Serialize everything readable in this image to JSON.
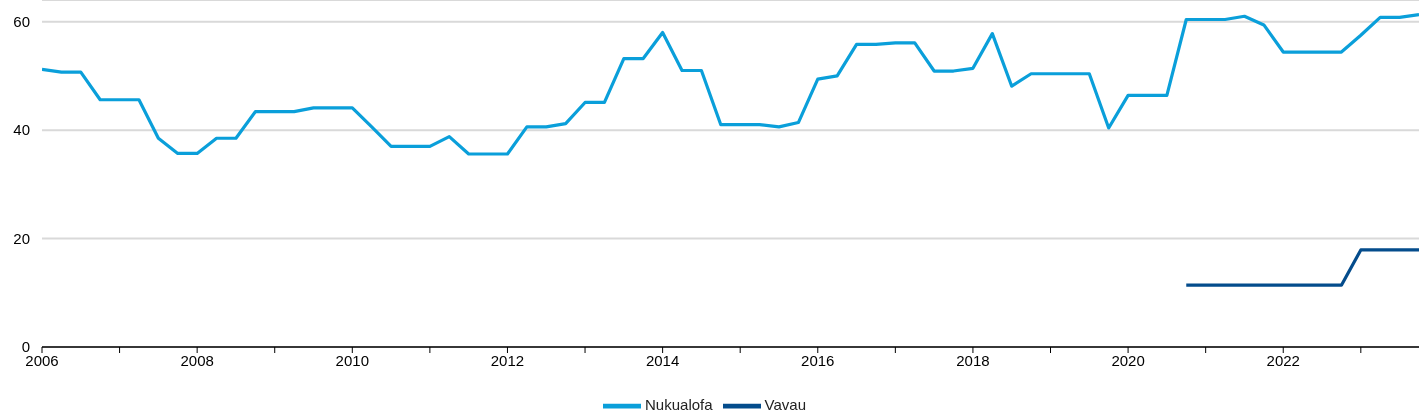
{
  "chart_data": {
    "type": "line",
    "x": [
      2006,
      2006.25,
      2006.5,
      2006.75,
      2007,
      2007.25,
      2007.5,
      2007.75,
      2008,
      2008.25,
      2008.5,
      2008.75,
      2009,
      2009.25,
      2009.5,
      2009.75,
      2010,
      2010.25,
      2010.5,
      2010.75,
      2011,
      2011.25,
      2011.5,
      2011.75,
      2012,
      2012.25,
      2012.5,
      2012.75,
      2013,
      2013.25,
      2013.5,
      2013.75,
      2014,
      2014.25,
      2014.5,
      2014.75,
      2015,
      2015.25,
      2015.5,
      2015.75,
      2016,
      2016.25,
      2016.5,
      2016.75,
      2017,
      2017.25,
      2017.5,
      2017.75,
      2018,
      2018.25,
      2018.5,
      2018.75,
      2019,
      2019.25,
      2019.5,
      2019.75,
      2020,
      2020.25,
      2020.5,
      2020.75,
      2021,
      2021.25,
      2021.5,
      2021.75,
      2022,
      2022.25,
      2022.5,
      2022.75,
      2023,
      2023.25,
      2023.5,
      2023.75
    ],
    "series": [
      {
        "name": "Nukualofa",
        "color": "#0a9fda",
        "values": [
          51.2,
          50.7,
          50.7,
          45.6,
          45.6,
          45.6,
          38.5,
          35.7,
          35.7,
          38.5,
          38.5,
          43.4,
          43.4,
          43.4,
          44.1,
          44.1,
          44.1,
          40.6,
          37.0,
          37.0,
          37.0,
          38.8,
          35.6,
          35.6,
          35.6,
          40.6,
          40.6,
          41.2,
          45.1,
          45.1,
          53.2,
          53.2,
          58.0,
          51.0,
          51.0,
          41.0,
          41.0,
          41.0,
          40.6,
          41.4,
          49.4,
          50.0,
          55.8,
          55.8,
          56.1,
          56.1,
          50.9,
          50.9,
          51.4,
          57.8,
          48.1,
          50.4,
          50.4,
          50.4,
          50.4,
          40.4,
          46.4,
          46.4,
          46.4,
          60.4,
          60.4,
          60.4,
          61.0,
          59.4,
          54.4,
          54.4,
          54.4,
          54.4,
          57.5,
          60.8,
          60.8,
          61.3
        ]
      },
      {
        "name": "Vavau",
        "color": "#044c8c",
        "values": [
          null,
          null,
          null,
          null,
          null,
          null,
          null,
          null,
          null,
          null,
          null,
          null,
          null,
          null,
          null,
          null,
          null,
          null,
          null,
          null,
          null,
          null,
          null,
          null,
          null,
          null,
          null,
          null,
          null,
          null,
          null,
          null,
          null,
          null,
          null,
          null,
          null,
          null,
          null,
          null,
          null,
          null,
          null,
          null,
          null,
          null,
          null,
          null,
          null,
          null,
          null,
          null,
          null,
          null,
          null,
          null,
          null,
          null,
          null,
          11.4,
          11.4,
          11.4,
          11.4,
          11.4,
          11.4,
          11.4,
          11.4,
          11.4,
          17.9,
          17.9,
          17.9,
          17.9
        ]
      }
    ],
    "xlim": [
      2006,
      2023.75
    ],
    "xticks": [
      2006,
      {
        "value": 2007,
        "label": null
      },
      2008,
      {
        "value": 2009,
        "label": null
      },
      2010,
      {
        "value": 2011,
        "label": null
      },
      2012,
      {
        "value": 2013,
        "label": null
      },
      2014,
      {
        "value": 2015,
        "label": null
      },
      2016,
      {
        "value": 2017,
        "label": null
      },
      2018,
      {
        "value": 2019,
        "label": null
      },
      2020,
      {
        "value": 2021,
        "label": null
      },
      2022,
      {
        "value": 2023,
        "label": null
      }
    ],
    "ylim": [
      0,
      64
    ],
    "yticks": [
      0,
      20,
      40,
      60
    ],
    "grid": "y",
    "legend": "bottom",
    "marker": "none",
    "line_style": "solid"
  }
}
